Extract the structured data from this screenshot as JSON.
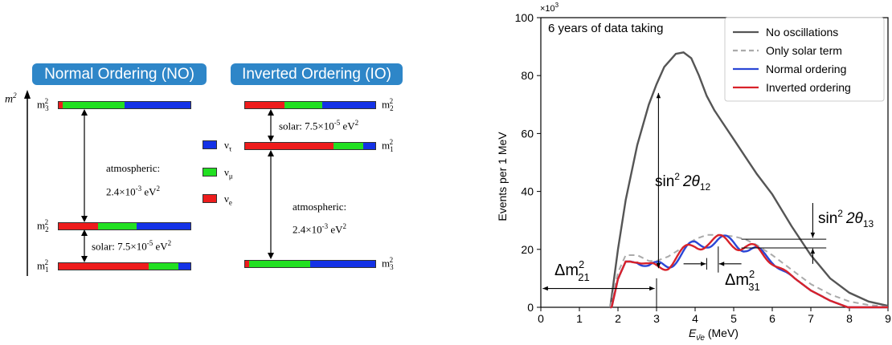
{
  "colors": {
    "nu_e": "#ee1c1c",
    "nu_mu": "#22e022",
    "nu_tau": "#1432e6",
    "pill": "#2e86c8",
    "no_osc": "#555555",
    "solar": "#aaaaaa",
    "normal": "#2b47d6",
    "inverted": "#d8222a"
  },
  "diagram": {
    "no_title": "Normal Ordering (NO)",
    "io_title": "Inverted Ordering (IO)",
    "m2_axis": "m",
    "m_base": "m",
    "m1_sub": "1",
    "m2_sub": "2",
    "m3_sub": "3",
    "sq": "2",
    "no_atmo_1": "atmospheric:",
    "no_atmo_2": "2.4×10",
    "atmo_exp": "-3",
    "unit_ev2": " eV",
    "solar_pre": "solar: 7.5×10",
    "solar_exp": "-5",
    "legend": [
      {
        "sym": "ν",
        "sub": "τ",
        "color": "#1432e6"
      },
      {
        "sym": "ν",
        "sub": "μ",
        "color": "#22e022"
      },
      {
        "sym": "ν",
        "sub": "e",
        "color": "#ee1c1c"
      }
    ]
  },
  "chart_data": {
    "type": "line",
    "multiplier": "×10",
    "multiplier_exp": "3",
    "annotation_top": "6 years of data taking",
    "xlabel": "E",
    "xlabel_sub": "ν̄e",
    "xlabel_unit": " (MeV)",
    "ylabel": "Events per 1 MeV",
    "xlim": [
      0,
      9
    ],
    "ylim": [
      0,
      100
    ],
    "xticks": [
      "0",
      "1",
      "2",
      "3",
      "4",
      "5",
      "6",
      "7",
      "8",
      "9"
    ],
    "yticks": [
      "0",
      "20",
      "40",
      "60",
      "80",
      "100"
    ],
    "legend_position": "top-right",
    "series": [
      {
        "name": "No oscillations",
        "style": "solid",
        "color": "#555555",
        "x": [
          1.8,
          2.0,
          2.2,
          2.5,
          2.8,
          3.0,
          3.2,
          3.5,
          3.7,
          3.9,
          4.1,
          4.3,
          4.5,
          4.7,
          5.0,
          5.3,
          5.6,
          6.0,
          6.5,
          7.0,
          7.5,
          8.0,
          8.5,
          9.0
        ],
        "y": [
          0,
          20,
          37,
          56,
          70,
          77,
          83,
          87.5,
          88,
          86,
          80,
          73,
          68,
          64,
          58,
          52,
          46,
          39,
          28,
          18,
          10,
          5,
          2,
          0.5
        ]
      },
      {
        "name": "Only solar term",
        "style": "dashed",
        "color": "#aaaaaa",
        "x": [
          1.8,
          2.0,
          2.2,
          2.5,
          2.8,
          3.0,
          3.3,
          3.6,
          4.0,
          4.3,
          4.6,
          5.0,
          5.3,
          5.6,
          6.0,
          6.5,
          7.0,
          7.5,
          8.0,
          8.5,
          9.0
        ],
        "y": [
          0,
          12,
          18,
          18,
          16,
          16,
          17.5,
          20,
          23.5,
          25,
          25,
          24.5,
          23.5,
          21.5,
          18,
          13,
          8,
          4.5,
          2,
          0.8,
          0.2
        ]
      },
      {
        "name": "Normal ordering",
        "style": "solid",
        "color": "#2b47d6"
      },
      {
        "name": "Inverted ordering",
        "style": "solid",
        "color": "#d8222a"
      }
    ],
    "annotations": [
      "sin",
      "2θ",
      "12",
      "13",
      "Δm",
      "21",
      "31",
      "2"
    ]
  }
}
